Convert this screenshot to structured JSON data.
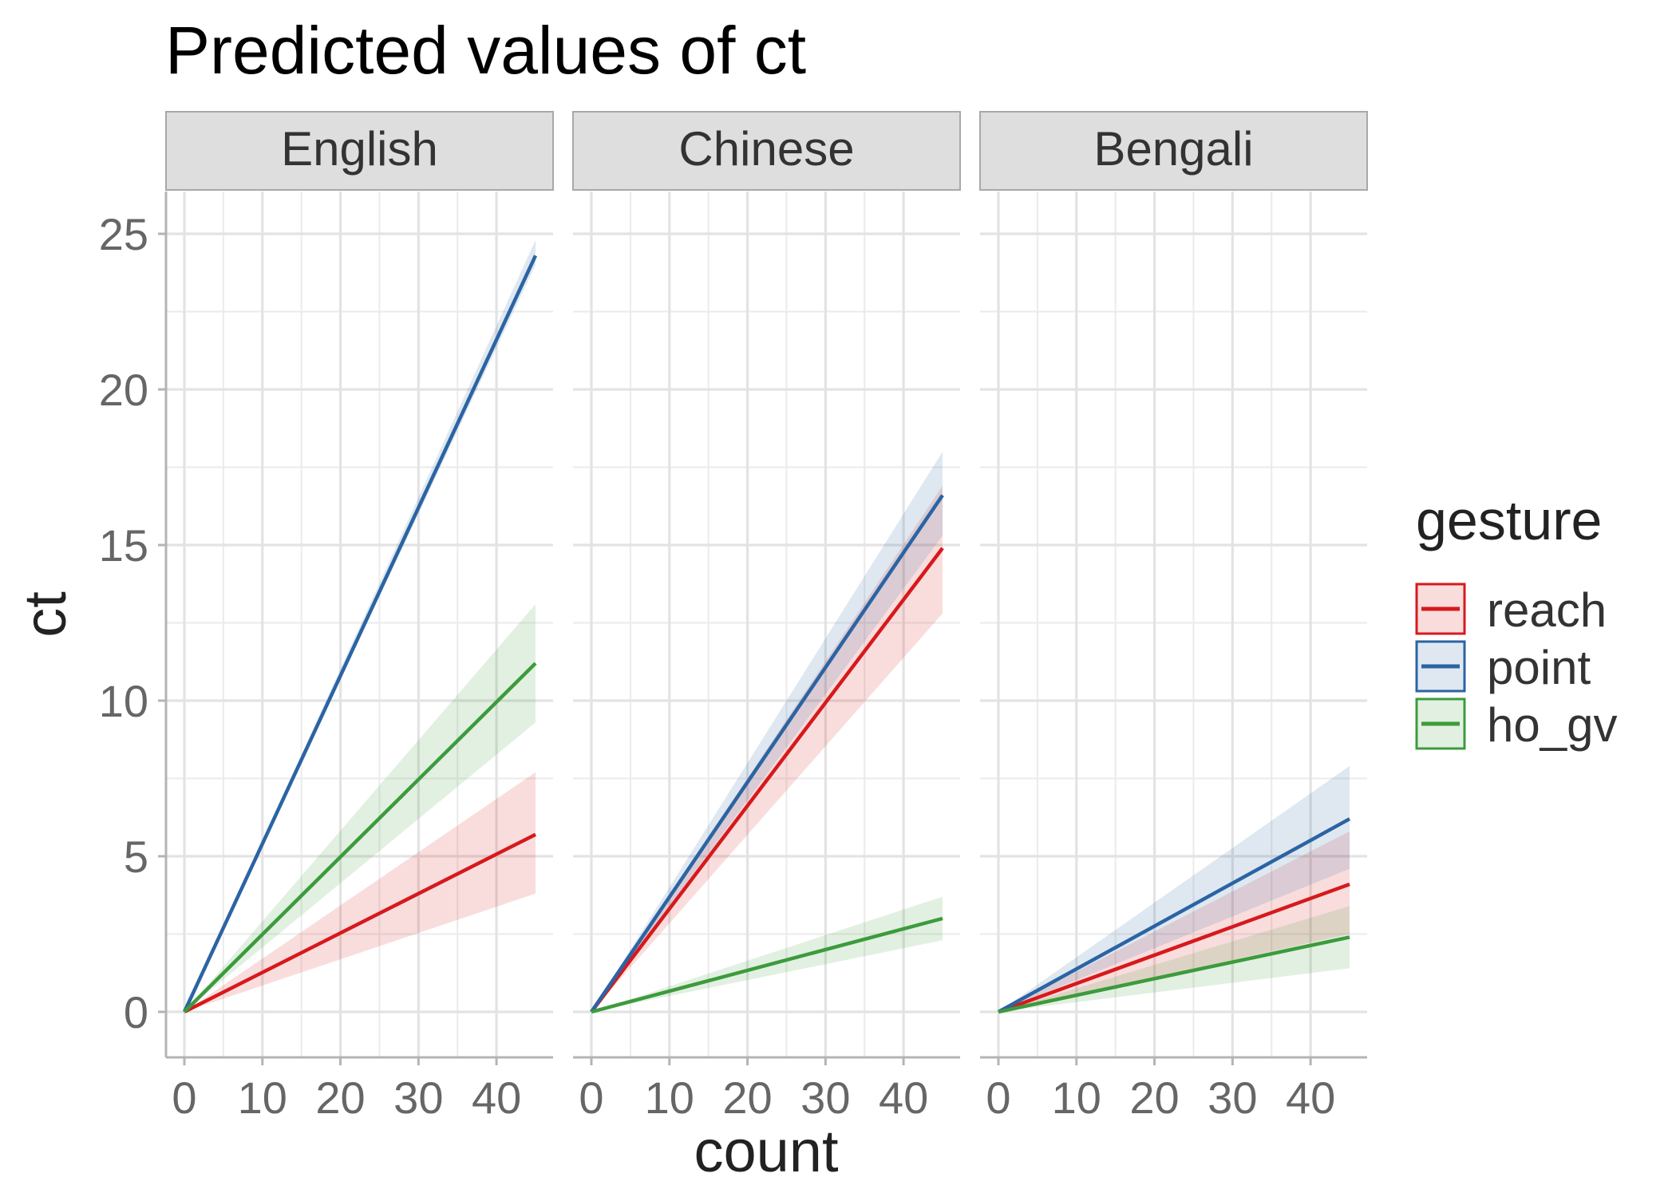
{
  "chart_data": {
    "type": "line",
    "title": "Predicted values of ct",
    "xlabel": "count",
    "ylabel": "ct",
    "xlim": [
      0,
      45
    ],
    "ylim": [
      0,
      25
    ],
    "x_ticks": [
      0,
      10,
      20,
      30,
      40
    ],
    "x_tick_labels": [
      "0",
      "10",
      "20",
      "30",
      "40"
    ],
    "y_ticks": [
      0,
      5,
      10,
      15,
      20,
      25
    ],
    "y_tick_labels": [
      "0",
      "5",
      "10",
      "15",
      "20",
      "25"
    ],
    "grid": true,
    "legend": {
      "title": "gesture",
      "position": "right",
      "entries": [
        "reach",
        "point",
        "ho_gv"
      ]
    },
    "colors": {
      "reach": "#d7191c",
      "point": "#2b64a3",
      "ho_gv": "#3c9b3c"
    },
    "panels": [
      {
        "name": "English",
        "series": [
          {
            "name": "reach",
            "x": [
              0,
              45
            ],
            "y": [
              0,
              5.7
            ],
            "lower": [
              0,
              3.8
            ],
            "upper": [
              0,
              7.7
            ]
          },
          {
            "name": "point",
            "x": [
              0,
              45
            ],
            "y": [
              0,
              24.3
            ],
            "lower": [
              0,
              24.0
            ],
            "upper": [
              0,
              24.8
            ]
          },
          {
            "name": "ho_gv",
            "x": [
              0,
              45
            ],
            "y": [
              0,
              11.2
            ],
            "lower": [
              0,
              9.3
            ],
            "upper": [
              0,
              13.1
            ]
          }
        ]
      },
      {
        "name": "Chinese",
        "series": [
          {
            "name": "reach",
            "x": [
              0,
              45
            ],
            "y": [
              0,
              14.9
            ],
            "lower": [
              0,
              12.8
            ],
            "upper": [
              0,
              16.9
            ]
          },
          {
            "name": "point",
            "x": [
              0,
              45
            ],
            "y": [
              0,
              16.6
            ],
            "lower": [
              0,
              15.3
            ],
            "upper": [
              0,
              18.0
            ]
          },
          {
            "name": "ho_gv",
            "x": [
              0,
              45
            ],
            "y": [
              0,
              3.0
            ],
            "lower": [
              0,
              2.3
            ],
            "upper": [
              0,
              3.7
            ]
          }
        ]
      },
      {
        "name": "Bengali",
        "series": [
          {
            "name": "reach",
            "x": [
              0,
              45
            ],
            "y": [
              0,
              4.1
            ],
            "lower": [
              0,
              2.5
            ],
            "upper": [
              0,
              5.8
            ]
          },
          {
            "name": "point",
            "x": [
              0,
              45
            ],
            "y": [
              0,
              6.2
            ],
            "lower": [
              0,
              4.6
            ],
            "upper": [
              0,
              7.9
            ]
          },
          {
            "name": "ho_gv",
            "x": [
              0,
              45
            ],
            "y": [
              0,
              2.4
            ],
            "lower": [
              0,
              1.4
            ],
            "upper": [
              0,
              3.4
            ]
          }
        ]
      }
    ]
  }
}
